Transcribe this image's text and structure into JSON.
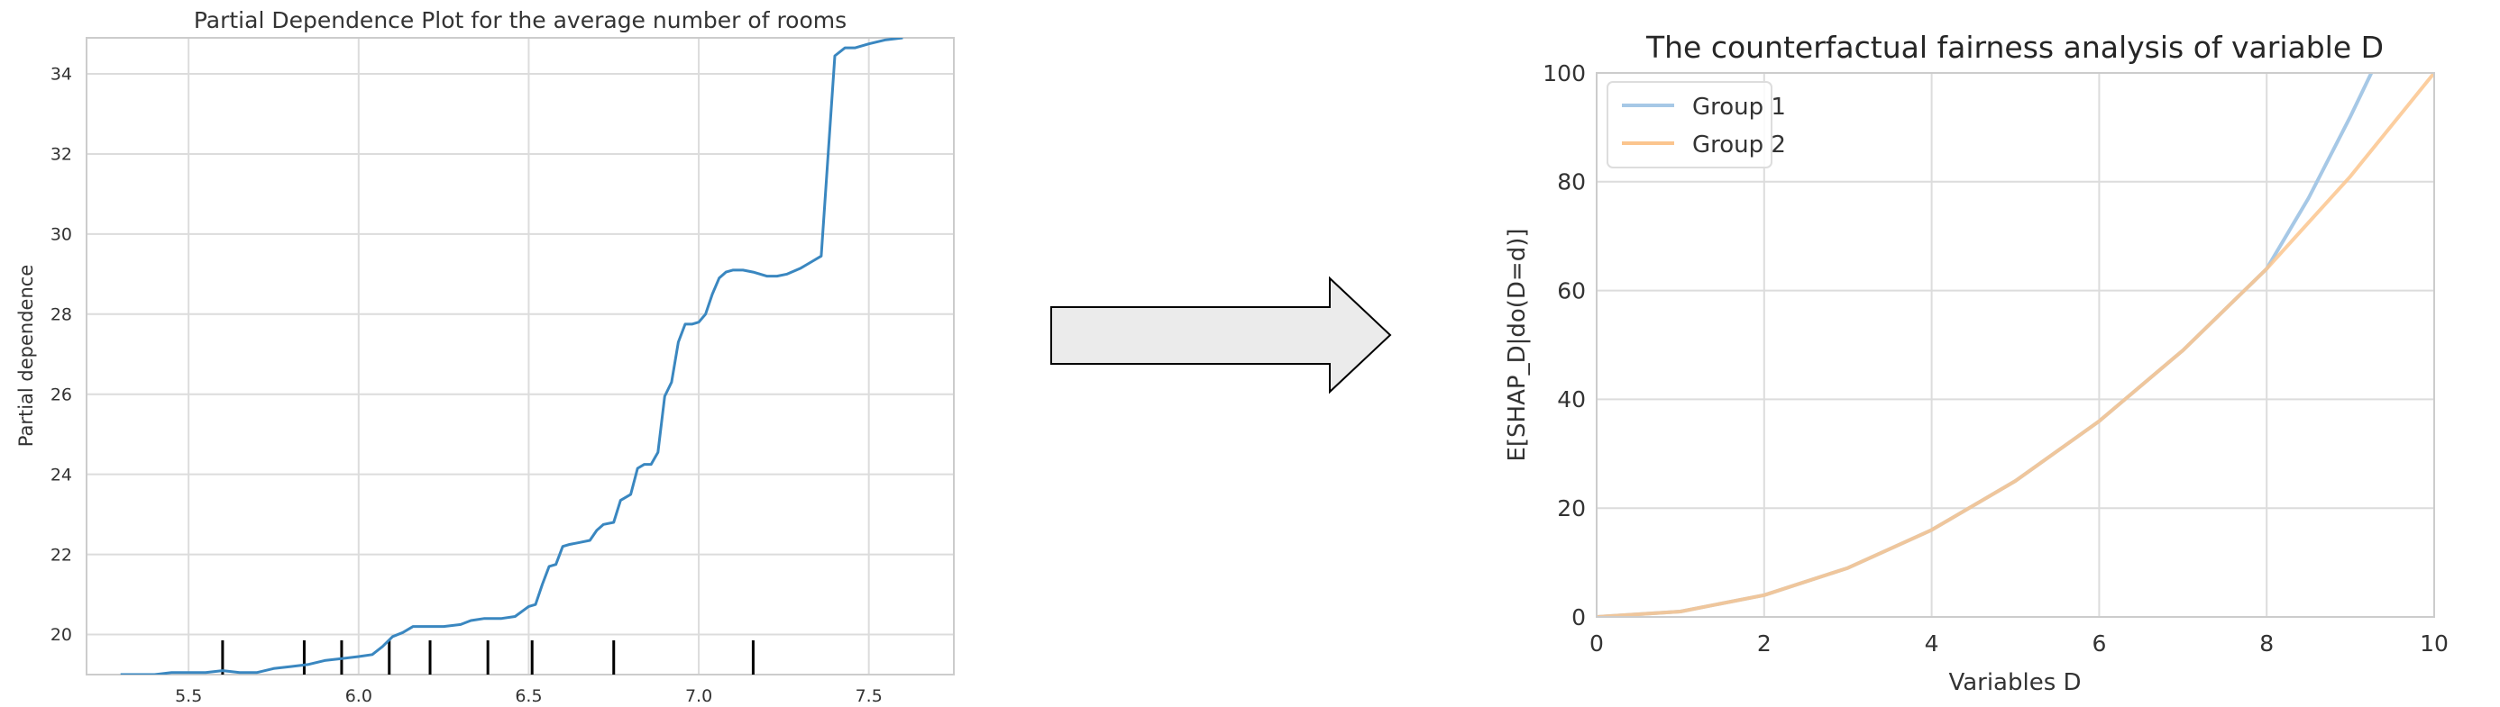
{
  "colors": {
    "pdp_line": "#3a87c0",
    "group1": "#a6c8e6",
    "group2": "#fbc58e",
    "grid": "#dcdcdc",
    "axis_frame": "#cccccc",
    "text": "#333333",
    "arrow_fill": "#ebebeb",
    "arrow_stroke": "#000000",
    "rug": "#000000"
  },
  "arrow": {
    "icon": "right-arrow-icon"
  },
  "chart_data": [
    {
      "type": "line",
      "title": "Partial Dependence Plot for the average number of rooms",
      "xlabel": "",
      "ylabel": "Partial dependence",
      "xlim": [
        5.2,
        7.75
      ],
      "ylim": [
        19.0,
        34.9
      ],
      "grid": true,
      "xticks": [
        5.5,
        6.0,
        6.5,
        7.0,
        7.5
      ],
      "xtick_labels": [
        "5.5",
        "6.0",
        "6.5",
        "7.0",
        "7.5"
      ],
      "yticks": [
        20,
        22,
        24,
        26,
        28,
        30,
        32,
        34
      ],
      "ytick_labels": [
        "20",
        "22",
        "24",
        "26",
        "28",
        "30",
        "32",
        "34"
      ],
      "series": [
        {
          "x": [
            5.3,
            5.35,
            5.4,
            5.45,
            5.5,
            5.55,
            5.6,
            5.65,
            5.7,
            5.75,
            5.8,
            5.85,
            5.9,
            5.95,
            6.0,
            6.04,
            6.07,
            6.1,
            6.13,
            6.16,
            6.2,
            6.25,
            6.3,
            6.33,
            6.37,
            6.42,
            6.46,
            6.5,
            6.52,
            6.54,
            6.56,
            6.58,
            6.6,
            6.62,
            6.65,
            6.68,
            6.7,
            6.72,
            6.75,
            6.77,
            6.8,
            6.82,
            6.84,
            6.86,
            6.88,
            6.9,
            6.92,
            6.94,
            6.96,
            6.98,
            7.0,
            7.02,
            7.04,
            7.06,
            7.08,
            7.1,
            7.13,
            7.16,
            7.2,
            7.23,
            7.26,
            7.3,
            7.33,
            7.36,
            7.4,
            7.43,
            7.44,
            7.46,
            7.5,
            7.55,
            7.6
          ],
          "y": [
            19.0,
            19.0,
            19.0,
            19.05,
            19.05,
            19.05,
            19.1,
            19.05,
            19.05,
            19.15,
            19.2,
            19.25,
            19.35,
            19.4,
            19.45,
            19.5,
            19.7,
            19.95,
            20.05,
            20.2,
            20.2,
            20.2,
            20.25,
            20.35,
            20.4,
            20.4,
            20.45,
            20.7,
            20.75,
            21.25,
            21.7,
            21.75,
            22.2,
            22.25,
            22.3,
            22.35,
            22.6,
            22.75,
            22.8,
            23.35,
            23.5,
            24.15,
            24.25,
            24.25,
            24.55,
            25.95,
            26.3,
            27.3,
            27.75,
            27.75,
            27.8,
            28.0,
            28.5,
            28.9,
            29.05,
            29.1,
            29.1,
            29.05,
            28.95,
            28.95,
            29.0,
            29.15,
            29.3,
            29.45,
            34.45,
            34.65,
            34.65,
            34.65,
            34.75,
            34.85,
            34.9
          ]
        }
      ],
      "rug_x": [
        5.6,
        5.84,
        5.95,
        6.09,
        6.21,
        6.38,
        6.51,
        6.75,
        7.16
      ]
    },
    {
      "type": "line",
      "title": "The counterfactual fairness analysis of variable D",
      "xlabel": "Variables D",
      "ylabel": "E[SHAP_D|do(D=d)]",
      "xlim": [
        0,
        10
      ],
      "ylim": [
        0,
        100
      ],
      "grid": true,
      "legend": "top-left",
      "xticks": [
        0,
        2,
        4,
        6,
        8,
        10
      ],
      "xtick_labels": [
        "0",
        "2",
        "4",
        "6",
        "8",
        "10"
      ],
      "yticks": [
        0,
        20,
        40,
        60,
        80,
        100
      ],
      "ytick_labels": [
        "0",
        "20",
        "40",
        "60",
        "80",
        "100"
      ],
      "series": [
        {
          "name": "Group 1",
          "x": [
            0,
            1,
            2,
            3,
            4,
            5,
            6,
            7,
            8,
            8.5,
            9,
            9.25
          ],
          "y": [
            0,
            1,
            4,
            9,
            16,
            25,
            36,
            49,
            64,
            77,
            92,
            100
          ]
        },
        {
          "name": "Group 2",
          "x": [
            0,
            1,
            2,
            3,
            4,
            5,
            6,
            7,
            8,
            9,
            10
          ],
          "y": [
            0,
            1,
            4,
            9,
            16,
            25,
            36,
            49,
            64,
            81,
            100
          ]
        }
      ]
    }
  ]
}
